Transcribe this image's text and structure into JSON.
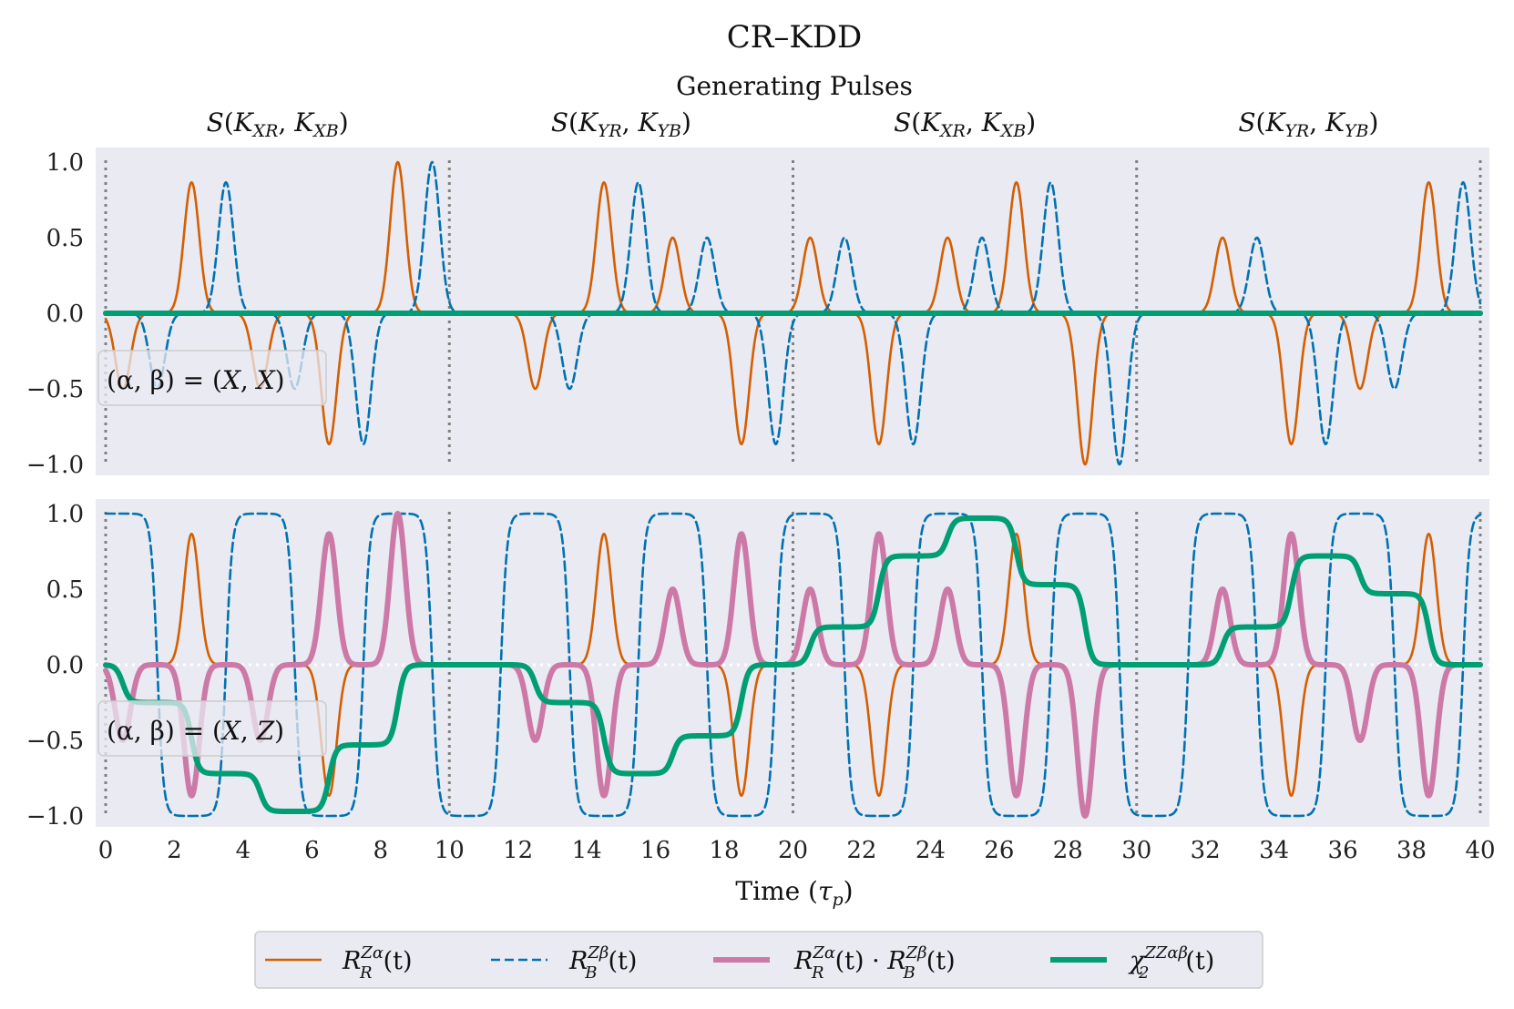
{
  "chart_data": {
    "type": "line",
    "title": "CR–KDD",
    "subtitle": "Generating Pulses",
    "segment_labels": [
      "S(K_XR, K_XB)",
      "S(K_YR, K_YB)",
      "S(K_XR, K_XB)",
      "S(K_YR, K_YB)"
    ],
    "segment_label_parts": [
      {
        "S": "S",
        "a": "K",
        "as": "XR",
        "b": "K",
        "bs": "XB"
      },
      {
        "S": "S",
        "a": "K",
        "as": "YR",
        "b": "K",
        "bs": "YB"
      },
      {
        "S": "S",
        "a": "K",
        "as": "XR",
        "b": "K",
        "bs": "XB"
      },
      {
        "S": "S",
        "a": "K",
        "as": "YR",
        "b": "K",
        "bs": "YB"
      }
    ],
    "segment_boundaries": [
      0,
      10,
      20,
      30,
      40
    ],
    "xlabel": "Time (τp)",
    "xlabel_parts": {
      "pre": "Time (",
      "sym": "τ",
      "sub": "p",
      "post": ")"
    },
    "xlim": [
      0,
      40
    ],
    "ylim": [
      -1,
      1
    ],
    "xticks": [
      "0",
      "2",
      "4",
      "6",
      "8",
      "10",
      "12",
      "14",
      "16",
      "18",
      "20",
      "22",
      "24",
      "26",
      "28",
      "30",
      "32",
      "34",
      "36",
      "38",
      "40"
    ],
    "yticks": [
      "1.0",
      "0.5",
      "0.0",
      "−0.5",
      "−1.0"
    ],
    "pulse_width_tau": 0.22,
    "panels": [
      {
        "label": "(α, β) = (X, X)",
        "label_parts": {
          "pre": "(α, β) = (",
          "a": "X",
          "mid": ", ",
          "b": "X",
          "post": ")"
        },
        "series": [
          {
            "name": "R_R^{Zα}(t)",
            "pulses": [
              [
                0.5,
                -0.5
              ],
              [
                2.5,
                0.866
              ],
              [
                4.5,
                -0.5
              ],
              [
                6.5,
                -0.866
              ],
              [
                8.5,
                1.0
              ],
              [
                12.5,
                -0.5
              ],
              [
                14.5,
                0.866
              ],
              [
                16.5,
                0.5
              ],
              [
                18.5,
                -0.866
              ],
              [
                20.5,
                0.5
              ],
              [
                22.5,
                -0.866
              ],
              [
                24.5,
                0.5
              ],
              [
                26.5,
                0.866
              ],
              [
                28.5,
                -1.0
              ],
              [
                32.5,
                0.5
              ],
              [
                34.5,
                -0.866
              ],
              [
                36.5,
                -0.5
              ],
              [
                38.5,
                0.866
              ]
            ]
          },
          {
            "name": "R_B^{Zβ}(t)",
            "pulses": [
              [
                1.5,
                -0.5
              ],
              [
                3.5,
                0.866
              ],
              [
                5.5,
                -0.5
              ],
              [
                7.5,
                -0.866
              ],
              [
                9.5,
                1.0
              ],
              [
                13.5,
                -0.5
              ],
              [
                15.5,
                0.866
              ],
              [
                17.5,
                0.5
              ],
              [
                19.5,
                -0.866
              ],
              [
                21.5,
                0.5
              ],
              [
                23.5,
                -0.866
              ],
              [
                25.5,
                0.5
              ],
              [
                27.5,
                0.866
              ],
              [
                29.5,
                -1.0
              ],
              [
                33.5,
                0.5
              ],
              [
                35.5,
                -0.866
              ],
              [
                37.5,
                -0.5
              ],
              [
                39.5,
                0.866
              ]
            ]
          },
          {
            "name": "R_R^{Zα}(t) · R_B^{Zβ}(t)",
            "pulses": []
          },
          {
            "name": "χ_2^{ZZαβ}(t)",
            "levels": [
              [
                0,
                0.0
              ]
            ]
          }
        ]
      },
      {
        "label": "(α, β) = (X, Z)",
        "label_parts": {
          "pre": "(α, β) = (",
          "a": "X",
          "mid": ", ",
          "b": "Z",
          "post": ")"
        },
        "series": [
          {
            "name": "R_R^{Zα}(t)",
            "pulses": [
              [
                0.5,
                -0.5
              ],
              [
                2.5,
                0.866
              ],
              [
                4.5,
                -0.5
              ],
              [
                6.5,
                -0.866
              ],
              [
                8.5,
                1.0
              ],
              [
                12.5,
                -0.5
              ],
              [
                14.5,
                0.866
              ],
              [
                16.5,
                0.5
              ],
              [
                18.5,
                -0.866
              ],
              [
                20.5,
                0.5
              ],
              [
                22.5,
                -0.866
              ],
              [
                24.5,
                0.5
              ],
              [
                26.5,
                0.866
              ],
              [
                28.5,
                -1.0
              ],
              [
                32.5,
                0.5
              ],
              [
                34.5,
                -0.866
              ],
              [
                36.5,
                -0.5
              ],
              [
                38.5,
                0.866
              ]
            ]
          },
          {
            "name": "R_B^{Zβ}(t)",
            "transitions": [
              1.5,
              3.5,
              5.5,
              7.5,
              9.5,
              11.5,
              13.5,
              15.5,
              17.5,
              19.5,
              21.5,
              23.5,
              25.5,
              27.5,
              29.5,
              31.5,
              33.5,
              35.5,
              37.5,
              39.5
            ],
            "initial": 1
          },
          {
            "name": "R_R^{Zα}(t) · R_B^{Zβ}(t)",
            "pulses": [
              [
                0.5,
                -0.5
              ],
              [
                2.5,
                -0.866
              ],
              [
                4.5,
                -0.5
              ],
              [
                6.5,
                0.866
              ],
              [
                8.5,
                1.0
              ],
              [
                12.5,
                -0.5
              ],
              [
                14.5,
                -0.866
              ],
              [
                16.5,
                0.5
              ],
              [
                18.5,
                0.866
              ],
              [
                20.5,
                0.5
              ],
              [
                22.5,
                0.866
              ],
              [
                24.5,
                0.5
              ],
              [
                26.5,
                -0.866
              ],
              [
                28.5,
                -1.0
              ],
              [
                32.5,
                0.5
              ],
              [
                34.5,
                0.866
              ],
              [
                36.5,
                -0.5
              ],
              [
                38.5,
                -0.866
              ]
            ]
          },
          {
            "name": "χ_2^{ZZαβ}(t)",
            "levels": [
              [
                0,
                0.0
              ],
              [
                0.5,
                -0.25
              ],
              [
                2.5,
                -0.72
              ],
              [
                4.5,
                -0.97
              ],
              [
                6.5,
                -0.53
              ],
              [
                8.5,
                0.0
              ],
              [
                12.5,
                -0.25
              ],
              [
                14.5,
                -0.72
              ],
              [
                16.5,
                -0.47
              ],
              [
                18.5,
                0.0
              ],
              [
                20.5,
                0.25
              ],
              [
                22.5,
                0.72
              ],
              [
                24.5,
                0.97
              ],
              [
                26.5,
                0.53
              ],
              [
                28.5,
                0.0
              ],
              [
                32.5,
                0.25
              ],
              [
                34.5,
                0.72
              ],
              [
                36.5,
                0.47
              ],
              [
                38.5,
                0.0
              ]
            ]
          }
        ]
      }
    ],
    "legend": {
      "placement": "bottom-center",
      "entries": [
        {
          "label": "R_R^{Zα}(t)",
          "parts": {
            "base": "R",
            "sup": "Zα",
            "sub": "R",
            "post": "(t)"
          },
          "color": "#d55e00",
          "style": "solid",
          "weight": "thin"
        },
        {
          "label": "R_B^{Zβ}(t)",
          "parts": {
            "base": "R",
            "sup": "Zβ",
            "sub": "B",
            "post": "(t)"
          },
          "color": "#0072b2",
          "style": "dashed",
          "weight": "thin"
        },
        {
          "label": "R_R^{Zα}(t) · R_B^{Zβ}(t)",
          "parts": {
            "base": "R",
            "sup": "Zα",
            "sub": "R",
            "post": "(t) · ",
            "base2": "R",
            "sup2": "Zβ",
            "sub2": "B",
            "post2": "(t)"
          },
          "color": "#cc79a7",
          "style": "solid",
          "weight": "thick"
        },
        {
          "label": "χ_2^{ZZαβ}(t)",
          "parts": {
            "base": "χ",
            "sup": "ZZαβ",
            "sub": "2",
            "post": "(t)"
          },
          "color": "#009e73",
          "style": "solid",
          "weight": "thick"
        }
      ]
    },
    "colors": {
      "panel_bg": "#eaeaf2",
      "boundary": "#808080",
      "zero_line": "#ffffff"
    }
  }
}
